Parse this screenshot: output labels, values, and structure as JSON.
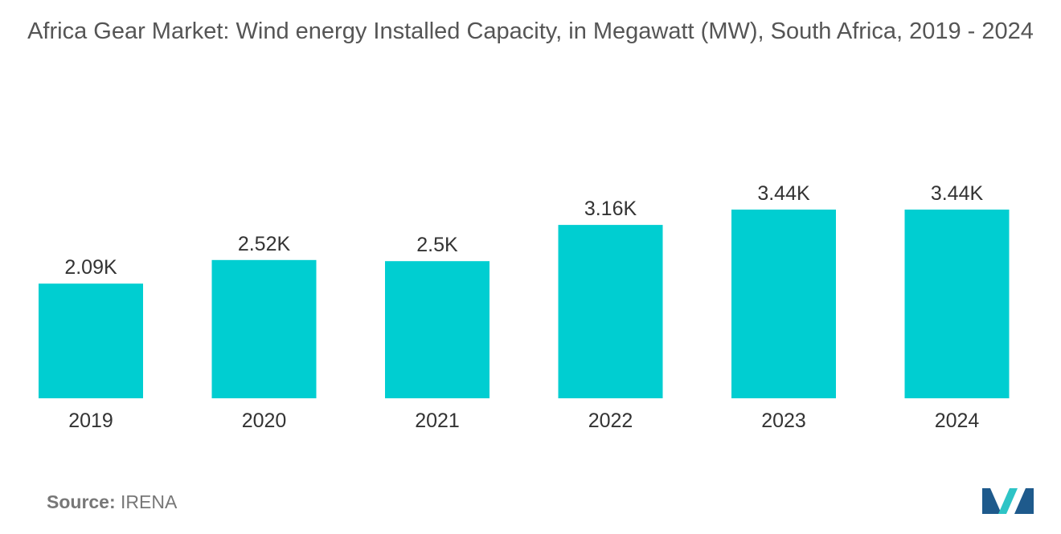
{
  "chart_data": {
    "type": "bar",
    "title": "Africa Gear Market: Wind energy Installed Capacity, in Megawatt (MW), South Africa, 2019 - 2024",
    "categories": [
      "2019",
      "2020",
      "2021",
      "2022",
      "2023",
      "2024"
    ],
    "values": [
      2090,
      2520,
      2500,
      3160,
      3440,
      3440
    ],
    "value_labels": [
      "2.09K",
      "2.52K",
      "2.5K",
      "3.16K",
      "3.44K",
      "3.44K"
    ],
    "xlabel": "",
    "ylabel": "",
    "ylim": [
      0,
      3440
    ],
    "grid": false,
    "legend": "none"
  },
  "source": {
    "label": "Source:",
    "value": "IRENA"
  },
  "colors": {
    "bar": "#00CED1",
    "text": "#333333",
    "title": "#555555",
    "logo_dark": "#1E5A8C",
    "logo_light": "#2EC4C6"
  }
}
